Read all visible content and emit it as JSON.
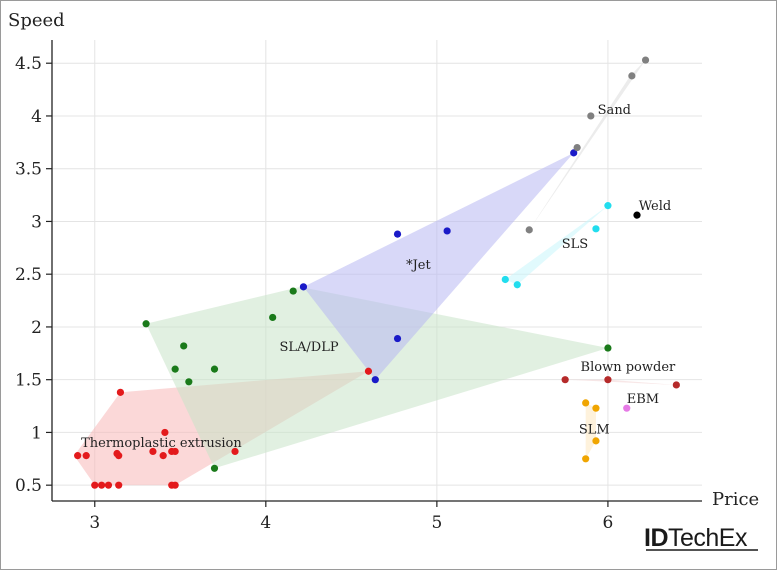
{
  "chart_data": {
    "type": "scatter",
    "title": "",
    "xlabel": "Price",
    "ylabel": "Speed",
    "xlim": [
      2.75,
      6.55
    ],
    "ylim": [
      0.35,
      4.72
    ],
    "x_ticks": [
      3,
      4,
      5,
      6
    ],
    "y_ticks": [
      0.5,
      1,
      1.5,
      2,
      2.5,
      3,
      3.5,
      4,
      4.5
    ],
    "x_tick_labels": [
      "3",
      "4",
      "5",
      "6"
    ],
    "y_tick_labels": [
      "0.5",
      "1",
      "1.5",
      "2",
      "2.5",
      "3",
      "3.5",
      "4",
      "4.5"
    ],
    "grid": true,
    "series": [
      {
        "name": "Thermoplastic extrusion",
        "color": "#e31a1c",
        "fill": "#f7b8b8",
        "label_pos": [
          2.92,
          0.86
        ],
        "hull": [
          [
            3.0,
            0.5
          ],
          [
            3.47,
            0.5
          ],
          [
            4.6,
            1.58
          ],
          [
            3.15,
            1.38
          ],
          [
            2.88,
            0.78
          ]
        ],
        "points": [
          [
            2.9,
            0.78
          ],
          [
            2.95,
            0.78
          ],
          [
            3.0,
            0.5
          ],
          [
            3.04,
            0.5
          ],
          [
            3.08,
            0.5
          ],
          [
            3.14,
            0.5
          ],
          [
            3.13,
            0.8
          ],
          [
            3.14,
            0.78
          ],
          [
            3.15,
            1.38
          ],
          [
            3.34,
            0.82
          ],
          [
            3.4,
            0.78
          ],
          [
            3.41,
            1.0
          ],
          [
            3.45,
            0.82
          ],
          [
            3.47,
            0.82
          ],
          [
            3.45,
            0.5
          ],
          [
            3.47,
            0.5
          ],
          [
            3.82,
            0.82
          ],
          [
            4.6,
            1.58
          ]
        ]
      },
      {
        "name": "SLA/DLP",
        "color": "#1a7a1a",
        "fill": "#c9e3c9",
        "label_pos": [
          4.08,
          1.77
        ],
        "hull": [
          [
            3.3,
            2.03
          ],
          [
            4.2,
            2.38
          ],
          [
            6.0,
            1.8
          ],
          [
            3.7,
            0.66
          ]
        ],
        "points": [
          [
            3.3,
            2.03
          ],
          [
            3.47,
            1.6
          ],
          [
            3.52,
            1.82
          ],
          [
            3.55,
            1.48
          ],
          [
            3.7,
            1.6
          ],
          [
            3.7,
            0.66
          ],
          [
            4.04,
            2.09
          ],
          [
            4.16,
            2.34
          ],
          [
            6.0,
            1.8
          ]
        ]
      },
      {
        "name": "*Jet",
        "color": "#1a1ac8",
        "fill": "#b8b8f2",
        "label_pos": [
          4.82,
          2.55
        ],
        "hull": [
          [
            4.22,
            2.38
          ],
          [
            5.8,
            3.65
          ],
          [
            4.64,
            1.5
          ]
        ],
        "points": [
          [
            4.22,
            2.38
          ],
          [
            4.64,
            1.5
          ],
          [
            4.77,
            1.89
          ],
          [
            4.77,
            2.88
          ],
          [
            5.06,
            2.91
          ],
          [
            5.8,
            3.65
          ]
        ]
      },
      {
        "name": "Sand",
        "color": "#808080",
        "fill": "#dcdcdc",
        "label_pos": [
          5.94,
          4.02
        ],
        "hull": [
          [
            5.54,
            2.92
          ],
          [
            6.13,
            4.38
          ],
          [
            6.22,
            4.53
          ]
        ],
        "points": [
          [
            5.54,
            2.92
          ],
          [
            5.82,
            3.7
          ],
          [
            5.9,
            4.0
          ],
          [
            6.14,
            4.38
          ],
          [
            6.22,
            4.53
          ]
        ]
      },
      {
        "name": "SLS",
        "color": "#22ddee",
        "fill": "#c8f6fb",
        "label_pos": [
          5.73,
          2.75
        ],
        "hull": [
          [
            5.4,
            2.45
          ],
          [
            6.0,
            3.15
          ],
          [
            5.47,
            2.4
          ]
        ],
        "points": [
          [
            5.4,
            2.45
          ],
          [
            5.47,
            2.4
          ],
          [
            5.93,
            2.93
          ],
          [
            6.0,
            3.15
          ]
        ]
      },
      {
        "name": "Weld",
        "color": "#000000",
        "fill": "none",
        "label_pos": [
          6.18,
          3.11
        ],
        "hull": [],
        "points": [
          [
            6.17,
            3.06
          ]
        ]
      },
      {
        "name": "Blown powder",
        "color": "#b52a2a",
        "fill": "#f2d4d4",
        "label_pos": [
          5.84,
          1.58
        ],
        "hull": [
          [
            5.75,
            1.5
          ],
          [
            6.4,
            1.45
          ],
          [
            6.0,
            1.5
          ]
        ],
        "points": [
          [
            5.75,
            1.5
          ],
          [
            6.0,
            1.5
          ],
          [
            6.4,
            1.45
          ]
        ]
      },
      {
        "name": "EBM",
        "color": "#e67ae6",
        "fill": "none",
        "label_pos": [
          6.11,
          1.28
        ],
        "hull": [],
        "points": [
          [
            6.11,
            1.23
          ]
        ]
      },
      {
        "name": "SLM",
        "color": "#f0a500",
        "fill": "#fde8c0",
        "label_pos": [
          5.83,
          0.99
        ],
        "hull": [
          [
            5.87,
            1.28
          ],
          [
            5.93,
            1.23
          ],
          [
            5.93,
            0.92
          ],
          [
            5.87,
            0.75
          ]
        ],
        "points": [
          [
            5.87,
            1.28
          ],
          [
            5.93,
            1.23
          ],
          [
            5.93,
            0.92
          ],
          [
            5.87,
            0.75
          ]
        ]
      }
    ]
  },
  "branding": {
    "logo_text": "IDTechEx",
    "logo_prefix": "ID",
    "logo_suffix": "TechEx"
  }
}
